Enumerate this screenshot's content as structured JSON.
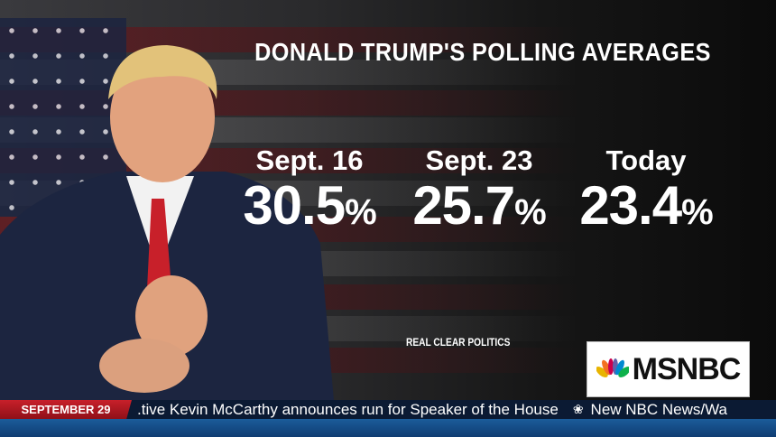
{
  "graphic": {
    "title": "DONALD TRUMP'S POLLING AVERAGES",
    "columns": [
      {
        "label": "Sept. 16",
        "value": "30.5",
        "unit": "%"
      },
      {
        "label": "Sept. 23",
        "value": "25.7",
        "unit": "%"
      },
      {
        "label": "Today",
        "value": "23.4",
        "unit": "%"
      }
    ],
    "source": "REAL CLEAR POLITICS"
  },
  "logo": {
    "text": "MSNBC",
    "peacock_colors": [
      "#e8b400",
      "#f37021",
      "#cc004c",
      "#6460aa",
      "#0089d0",
      "#0db14b"
    ]
  },
  "ticker": {
    "date": "SEPTEMBER 29",
    "headline": ".tive Kevin McCarthy announces run for Speaker of the House",
    "next": "New NBC News/Wa"
  }
}
